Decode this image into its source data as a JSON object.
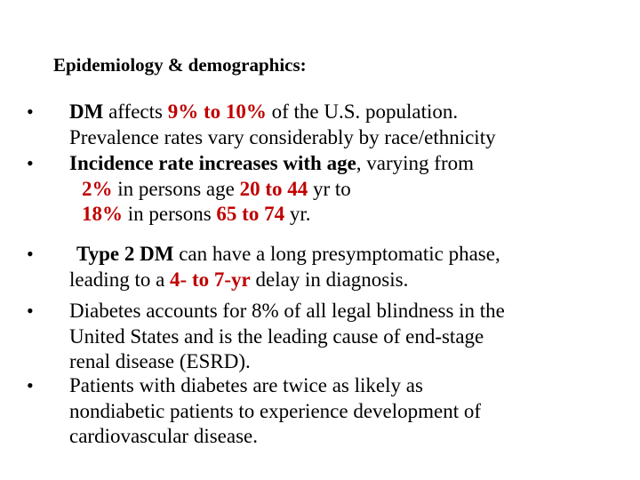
{
  "slide": {
    "title": "Epidemiology & demographics:",
    "bullet_glyph": "•",
    "bullets": [
      {
        "lines": [
          [
            "DM",
            " affects ",
            "9% to 10%",
            " of the U.S. population."
          ],
          [
            "Prevalence rates vary considerably by race/ethnicity"
          ]
        ]
      },
      {
        "lines": [
          [
            "Incidence rate increases with age",
            ", varying from"
          ],
          [
            "2%",
            " in persons age ",
            "20 to 44",
            " yr to"
          ],
          [
            "18%",
            " in persons ",
            "65 to 74",
            " yr."
          ]
        ]
      },
      {
        "lines": [
          [
            "Type 2 DM",
            " can have a long presymptomatic phase,"
          ],
          [
            "leading to a ",
            "4- to 7-yr",
            " delay in diagnosis."
          ]
        ]
      },
      {
        "lines": [
          [
            "Diabetes accounts for 8% of all legal blindness in the"
          ],
          [
            "United States and is the leading cause of end-stage"
          ],
          [
            "renal disease (ESRD)."
          ]
        ]
      },
      {
        "lines": [
          [
            "Patients with diabetes are twice as likely as"
          ],
          [
            "nondiabetic patients to experience development of"
          ],
          [
            "cardiovascular disease."
          ]
        ]
      }
    ]
  }
}
